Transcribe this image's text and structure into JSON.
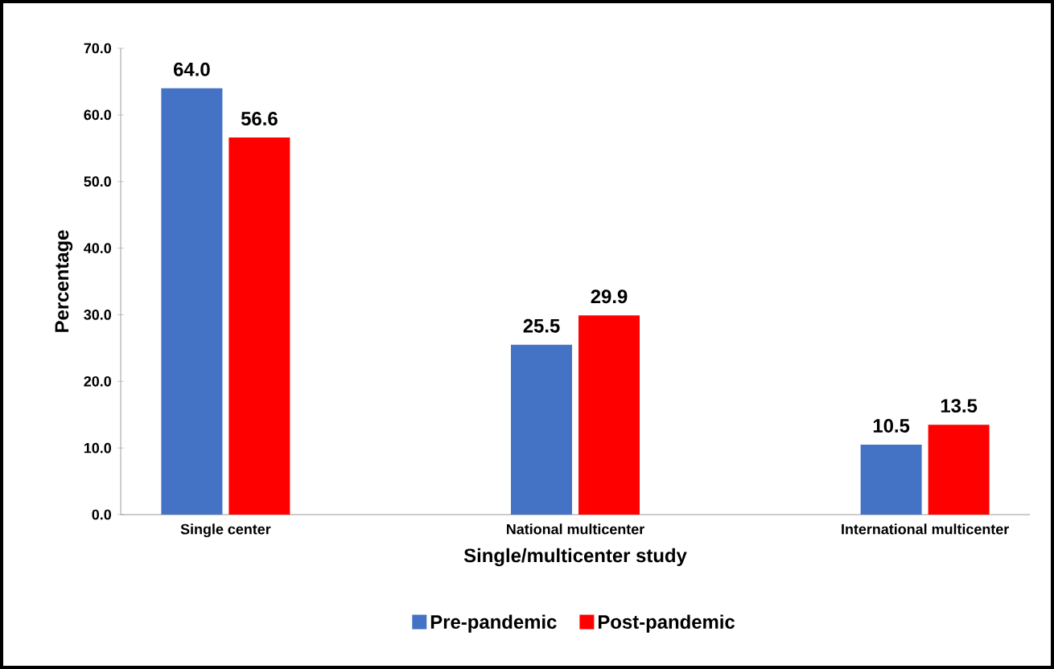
{
  "chart_data": {
    "type": "bar",
    "xlabel": "Single/multicenter study",
    "ylabel": "Percentage",
    "categories": [
      "Single center",
      "National multicenter",
      "International multicenter"
    ],
    "series": [
      {
        "name": "Pre-pandemic",
        "color": "#4472c4",
        "values": [
          64.0,
          25.5,
          10.5
        ],
        "value_labels": [
          "64.0",
          "25.5",
          "10.5"
        ]
      },
      {
        "name": "Post-pandemic",
        "color": "#ff0000",
        "values": [
          56.6,
          29.9,
          13.5
        ],
        "value_labels": [
          "56.6",
          "29.9",
          "13.5"
        ]
      }
    ],
    "ylim": [
      0,
      70
    ],
    "yticks": [
      {
        "value": 0,
        "label": "0.0"
      },
      {
        "value": 10,
        "label": "10.0"
      },
      {
        "value": 20,
        "label": "20.0"
      },
      {
        "value": 30,
        "label": "30.0"
      },
      {
        "value": 40,
        "label": "40.0"
      },
      {
        "value": 50,
        "label": "50.0"
      },
      {
        "value": 60,
        "label": "60.0"
      },
      {
        "value": 70,
        "label": "70.0"
      }
    ],
    "grid": false,
    "legend": "bottom"
  }
}
